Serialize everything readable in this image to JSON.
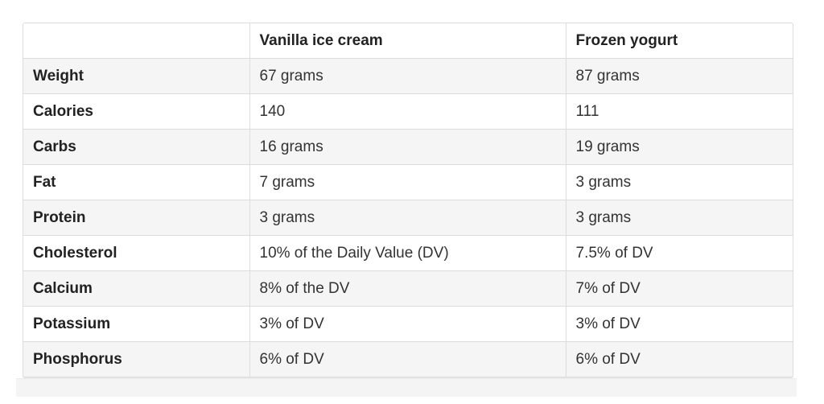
{
  "table": {
    "headers": [
      "",
      "Vanilla ice cream",
      "Frozen yogurt"
    ],
    "rows": [
      [
        "Weight",
        "67 grams",
        "87 grams"
      ],
      [
        "Calories",
        "140",
        "111"
      ],
      [
        "Carbs",
        "16 grams",
        "19 grams"
      ],
      [
        "Fat",
        "7 grams",
        "3 grams"
      ],
      [
        "Protein",
        "3 grams",
        "3 grams"
      ],
      [
        "Cholesterol",
        "10% of the Daily Value (DV)",
        "7.5% of DV"
      ],
      [
        "Calcium",
        "8% of the DV",
        "7% of DV"
      ],
      [
        "Potassium",
        "3% of DV",
        "3% of DV"
      ],
      [
        "Phosphorus",
        "6% of DV",
        "6% of DV"
      ]
    ]
  },
  "colors": {
    "border": "#dcdcdc",
    "stripe": "#f5f5f5",
    "text": "#2b2b2b"
  }
}
